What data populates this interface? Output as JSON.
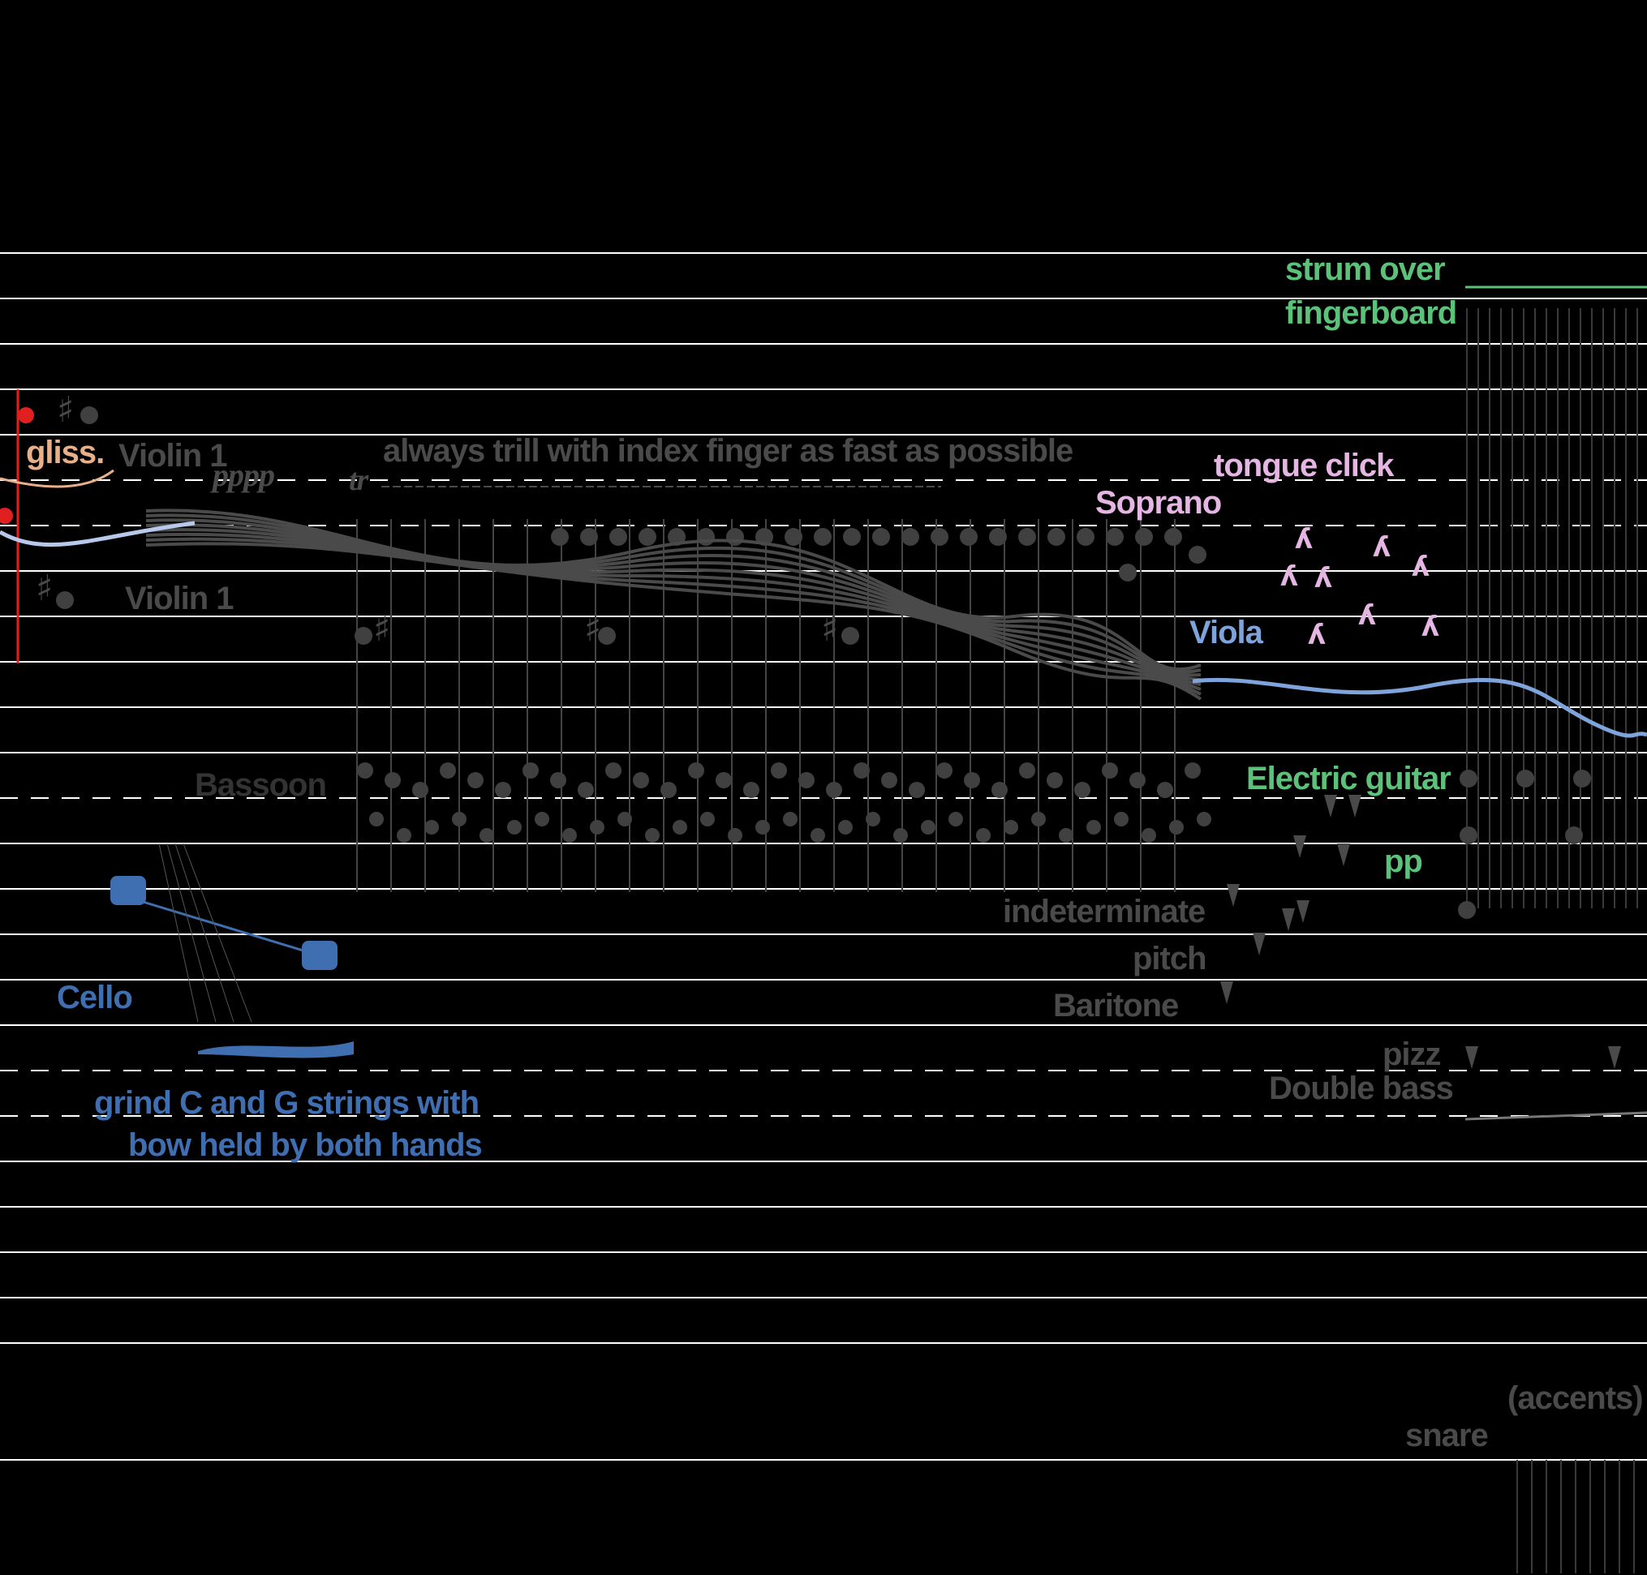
{
  "colors": {
    "background": "#000000",
    "staff_line": "#ffffff",
    "grey_text": "#4a4a4a",
    "violin_gloss": "#e8b08a",
    "violin_red": "#e02020",
    "soprano_pink": "#e5b6e4",
    "guitar_green": "#5cc27a",
    "cello_blue": "#3f6fb0",
    "viola_blue": "#7fa4dc"
  },
  "icons": {
    "clef": "sharp-sign",
    "click": "lambda-glyph",
    "bow": "bow-frog-icon"
  },
  "labels": {
    "gliss": "gliss.",
    "violin1_top": "Violin 1",
    "pppp": "pppp",
    "violin1_bottom": "Violin 1",
    "trill_instruction": "always trill with index finger as fast as possible",
    "trill_mark": "tr",
    "tongue_click": "tongue click",
    "soprano": "Soprano",
    "strum_line1": "strum over",
    "strum_line2": "fingerboard",
    "viola": "Viola",
    "bassoon": "Bassoon",
    "electric_guitar": "Electric guitar",
    "pp": "pp",
    "indeterminate": "indeterminate",
    "pitch": "pitch",
    "baritone": "Baritone",
    "cello": "Cello",
    "cello_instr_line1": "grind C and G strings with",
    "cello_instr_line2": "bow held by both hands",
    "pizz": "pizz",
    "double_bass": "Double bass",
    "accents": "(accents)",
    "snare": "snare"
  }
}
